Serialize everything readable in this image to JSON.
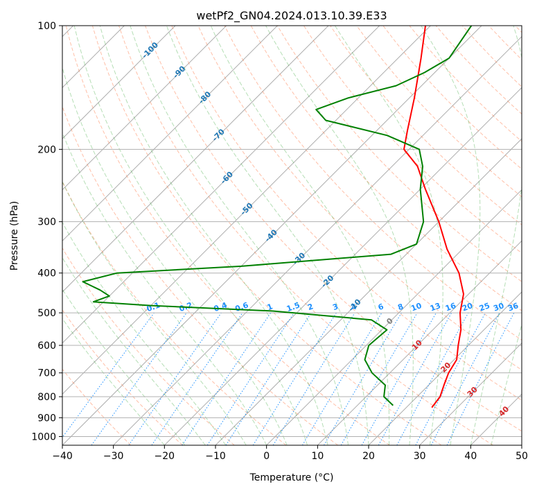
{
  "chart_data": {
    "type": "line",
    "title": "wetPf2_GN04.2024.013.10.39.E33",
    "xlabel": "Temperature (°C)",
    "ylabel": "Pressure (hPa)",
    "xlim": [
      -40,
      50
    ],
    "ylim": [
      1050,
      100
    ],
    "yscale": "log",
    "skew": true,
    "grid": true,
    "x_ticks": [
      -40,
      -30,
      -20,
      -10,
      0,
      10,
      20,
      30,
      40,
      50
    ],
    "y_ticks": [
      100,
      200,
      300,
      400,
      500,
      600,
      700,
      800,
      900,
      1000
    ],
    "background_lines": {
      "dry_adiabats_color": "#ff7f50",
      "moist_adiabats_color": "#2ca02c",
      "mixing_ratio_color": "#1e90ff",
      "isotherm_color": "#999999"
    },
    "isotherm_labels": [
      {
        "t": -100,
        "text": "-100",
        "color": "#1f77b4"
      },
      {
        "t": -90,
        "text": "-90",
        "color": "#1f77b4"
      },
      {
        "t": -80,
        "text": "-80",
        "color": "#1f77b4"
      },
      {
        "t": -70,
        "text": "-70",
        "color": "#1f77b4"
      },
      {
        "t": -60,
        "text": "-60",
        "color": "#1f77b4"
      },
      {
        "t": -50,
        "text": "-50",
        "color": "#1f77b4"
      },
      {
        "t": -40,
        "text": "-40",
        "color": "#1f77b4"
      },
      {
        "t": -30,
        "text": "-30",
        "color": "#1f77b4"
      },
      {
        "t": -20,
        "text": "-20",
        "color": "#1f77b4"
      },
      {
        "t": -10,
        "text": "-10",
        "color": "#1f77b4"
      },
      {
        "t": 0,
        "text": "0",
        "color": "#7f7f7f"
      },
      {
        "t": 10,
        "text": "10",
        "color": "#d62728"
      },
      {
        "t": 20,
        "text": "20",
        "color": "#d62728"
      },
      {
        "t": 30,
        "text": "30",
        "color": "#d62728"
      },
      {
        "t": 40,
        "text": "40",
        "color": "#d62728"
      }
    ],
    "mixing_ratio_labels": [
      "0.1",
      "0.2",
      "0.4",
      "0.6",
      "1",
      "1.5",
      "2",
      "3",
      "4",
      "6",
      "8",
      "10",
      "13",
      "16",
      "20",
      "25",
      "30",
      "36"
    ],
    "series": [
      {
        "color": "#ff0000",
        "points": [
          {
            "p": 850,
            "t": 25.0
          },
          {
            "p": 800,
            "t": 24.5
          },
          {
            "p": 750,
            "t": 23.0
          },
          {
            "p": 700,
            "t": 21.5
          },
          {
            "p": 650,
            "t": 20.5
          },
          {
            "p": 600,
            "t": 18.0
          },
          {
            "p": 550,
            "t": 15.5
          },
          {
            "p": 500,
            "t": 12.0
          },
          {
            "p": 450,
            "t": 9.0
          },
          {
            "p": 400,
            "t": 4.0
          },
          {
            "p": 350,
            "t": -3.0
          },
          {
            "p": 300,
            "t": -10.0
          },
          {
            "p": 250,
            "t": -19.0
          },
          {
            "p": 220,
            "t": -25.0
          },
          {
            "p": 200,
            "t": -31.0
          },
          {
            "p": 180,
            "t": -34.0
          },
          {
            "p": 150,
            "t": -39.0
          },
          {
            "p": 120,
            "t": -45.5
          },
          {
            "p": 100,
            "t": -51.0
          }
        ]
      },
      {
        "color": "#008000",
        "points": [
          {
            "p": 840,
            "t": 17.0
          },
          {
            "p": 800,
            "t": 13.5
          },
          {
            "p": 750,
            "t": 11.5
          },
          {
            "p": 700,
            "t": 6.5
          },
          {
            "p": 650,
            "t": 2.5
          },
          {
            "p": 600,
            "t": 0.5
          },
          {
            "p": 550,
            "t": 1.0
          },
          {
            "p": 520,
            "t": -4.0
          },
          {
            "p": 495,
            "t": -25.0
          },
          {
            "p": 480,
            "t": -50.0
          },
          {
            "p": 470,
            "t": -62.0
          },
          {
            "p": 455,
            "t": -60.0
          },
          {
            "p": 440,
            "t": -63.0
          },
          {
            "p": 420,
            "t": -68.0
          },
          {
            "p": 400,
            "t": -63.0
          },
          {
            "p": 385,
            "t": -40.0
          },
          {
            "p": 360,
            "t": -13.0
          },
          {
            "p": 340,
            "t": -10.0
          },
          {
            "p": 300,
            "t": -13.0
          },
          {
            "p": 250,
            "t": -20.0
          },
          {
            "p": 220,
            "t": -24.0
          },
          {
            "p": 200,
            "t": -28.0
          },
          {
            "p": 185,
            "t": -37.0
          },
          {
            "p": 170,
            "t": -52.0
          },
          {
            "p": 160,
            "t": -56.0
          },
          {
            "p": 150,
            "t": -52.0
          },
          {
            "p": 140,
            "t": -45.0
          },
          {
            "p": 130,
            "t": -42.0
          },
          {
            "p": 120,
            "t": -40.0
          },
          {
            "p": 100,
            "t": -42.0
          }
        ]
      }
    ]
  }
}
